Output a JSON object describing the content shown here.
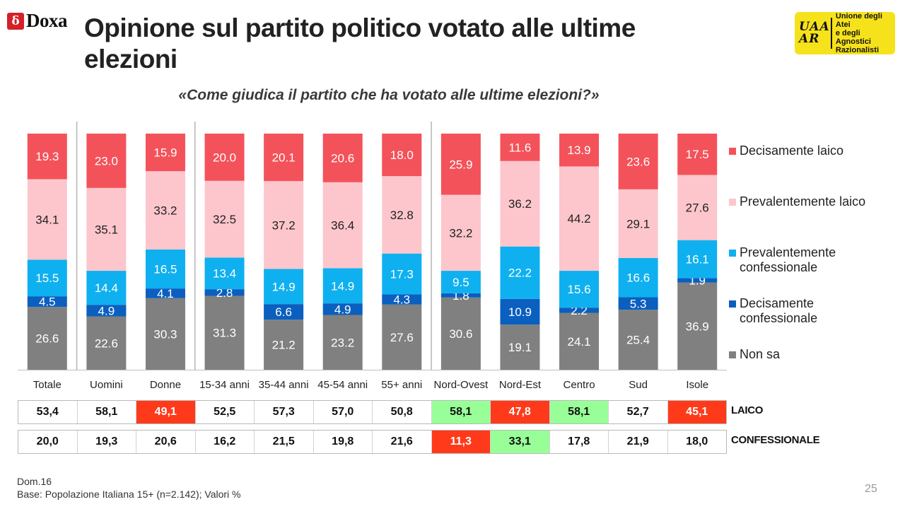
{
  "logos": {
    "doxa": {
      "mark": "δ",
      "text": "Doxa"
    },
    "uaar": {
      "mark_top": "UAA",
      "mark_bottom": "AR",
      "lines": [
        "Unione degli Atei",
        "e degli Agnostici",
        "Razionalisti"
      ]
    }
  },
  "title": "Opinione sul partito politico votato alle ultime elezioni",
  "subtitle": "«Come giudica il partito che ha votato alle ultime elezioni?»",
  "chart_data": {
    "type": "bar",
    "stacked": true,
    "orientation": "vertical",
    "categories": [
      "Totale",
      "Uomini",
      "Donne",
      "15-34 anni",
      "35-44 anni",
      "45-54 anni",
      "55+ anni",
      "Nord-Ovest",
      "Nord-Est",
      "Centro",
      "Sud",
      "Isole"
    ],
    "series": [
      {
        "name": "Non sa",
        "color": "#808080",
        "values": [
          26.6,
          22.6,
          30.3,
          31.3,
          21.2,
          23.2,
          27.6,
          30.6,
          19.1,
          24.1,
          25.4,
          36.9
        ]
      },
      {
        "name": "Decisamente confessionale",
        "color": "#0a5fbf",
        "values": [
          4.5,
          4.9,
          4.1,
          2.8,
          6.6,
          4.9,
          4.3,
          1.8,
          10.9,
          2.2,
          5.3,
          1.9
        ]
      },
      {
        "name": "Prevalentemente confessionale",
        "color": "#0fb0ef",
        "values": [
          15.5,
          14.4,
          16.5,
          13.4,
          14.9,
          14.9,
          17.3,
          9.5,
          22.2,
          15.6,
          16.6,
          16.1
        ]
      },
      {
        "name": "Prevalentemente laico",
        "color": "#fcc6cc",
        "values": [
          34.1,
          35.1,
          33.2,
          32.5,
          37.2,
          36.4,
          32.8,
          32.2,
          36.2,
          44.2,
          29.1,
          27.6
        ]
      },
      {
        "name": "Decisamente laico",
        "color": "#f4525a",
        "values": [
          19.3,
          23.0,
          15.9,
          20.0,
          20.1,
          20.6,
          18.0,
          25.9,
          11.6,
          13.9,
          23.6,
          17.5
        ]
      }
    ],
    "legend_order": [
      "Decisamente laico",
      "Prevalentemente laico",
      "Prevalentemente confessionale",
      "Decisamente confessionale",
      "Non sa"
    ],
    "legend_position": "right",
    "ylim": [
      0,
      100
    ],
    "group_separators_after": [
      "Totale",
      "Donne",
      "55+ anni"
    ]
  },
  "summary_table": {
    "rows": [
      {
        "label": "LAICO",
        "values": [
          "53,4",
          "58,1",
          "49,1",
          "52,5",
          "57,3",
          "57,0",
          "50,8",
          "58,1",
          "47,8",
          "58,1",
          "52,7",
          "45,1"
        ],
        "highlights": [
          "",
          "",
          "red",
          "",
          "",
          "",
          "",
          "green",
          "red",
          "green",
          "",
          "red"
        ]
      },
      {
        "label": "CONFESSIONALE",
        "values": [
          "20,0",
          "19,3",
          "20,6",
          "16,2",
          "21,5",
          "19,8",
          "21,6",
          "11,3",
          "33,1",
          "17,8",
          "21,9",
          "18,0"
        ],
        "highlights": [
          "",
          "",
          "",
          "",
          "",
          "",
          "",
          "red",
          "green",
          "",
          "",
          ""
        ]
      }
    ],
    "colors": {
      "red": "#ff3a1a",
      "green": "#98ff98"
    }
  },
  "footnote": {
    "line1": "Dom.16",
    "line2": "Base: Popolazione Italiana 15+ (n=2.142); Valori %"
  },
  "page_number": "25"
}
